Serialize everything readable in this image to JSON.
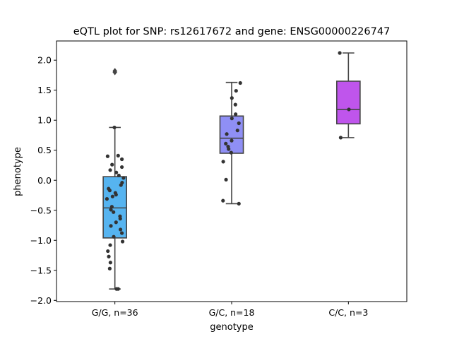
{
  "chart_data": {
    "type": "box",
    "title": "eQTL plot for SNP: rs12617672 and gene: ENSG00000226747",
    "xlabel": "genotype",
    "ylabel": "phenotype",
    "ylim": [
      -2.02,
      2.32
    ],
    "yticks": [
      2.0,
      1.5,
      1.0,
      0.5,
      0.0,
      -0.5,
      -1.0,
      -1.5,
      -2.0
    ],
    "ytick_labels": [
      "2.0",
      "1.5",
      "1.0",
      "0.5",
      "0.0",
      "−0.5",
      "−1.0",
      "−1.5",
      "−2.0"
    ],
    "grid": false,
    "groups": [
      {
        "label": "G/G, n=36",
        "color": "#56b4f0",
        "box": {
          "q1": -0.96,
          "median": -0.46,
          "q3": 0.06,
          "whisker_low": -1.81,
          "whisker_high": 0.88
        },
        "outliers": [
          1.8,
          1.82
        ],
        "points": [
          {
            "dx": -0.02,
            "y": 0.88
          },
          {
            "dx": 0.14,
            "y": 0.41
          },
          {
            "dx": -0.31,
            "y": 0.4
          },
          {
            "dx": 0.3,
            "y": 0.35
          },
          {
            "dx": -0.12,
            "y": 0.26
          },
          {
            "dx": 0.3,
            "y": 0.22
          },
          {
            "dx": -0.2,
            "y": 0.17
          },
          {
            "dx": 0.06,
            "y": 0.13
          },
          {
            "dx": 0.17,
            "y": 0.08
          },
          {
            "dx": 0.37,
            "y": 0.04
          },
          {
            "dx": 0.31,
            "y": -0.04
          },
          {
            "dx": 0.26,
            "y": -0.08
          },
          {
            "dx": -0.27,
            "y": -0.14
          },
          {
            "dx": -0.22,
            "y": -0.17
          },
          {
            "dx": 0.02,
            "y": -0.21
          },
          {
            "dx": 0.05,
            "y": -0.24
          },
          {
            "dx": -0.1,
            "y": -0.27
          },
          {
            "dx": -0.34,
            "y": -0.31
          },
          {
            "dx": -0.13,
            "y": -0.44
          },
          {
            "dx": -0.17,
            "y": -0.49
          },
          {
            "dx": -0.06,
            "y": -0.53
          },
          {
            "dx": 0.22,
            "y": -0.6
          },
          {
            "dx": 0.23,
            "y": -0.64
          },
          {
            "dx": 0.05,
            "y": -0.7
          },
          {
            "dx": -0.17,
            "y": -0.76
          },
          {
            "dx": 0.24,
            "y": -0.82
          },
          {
            "dx": 0.3,
            "y": -0.88
          },
          {
            "dx": -0.05,
            "y": -0.94
          },
          {
            "dx": 0.33,
            "y": -1.02
          },
          {
            "dx": -0.2,
            "y": -1.08
          },
          {
            "dx": -0.3,
            "y": -1.18
          },
          {
            "dx": -0.26,
            "y": -1.27
          },
          {
            "dx": -0.19,
            "y": -1.37
          },
          {
            "dx": -0.22,
            "y": -1.47
          },
          {
            "dx": 0.07,
            "y": -1.81
          },
          {
            "dx": 0.14,
            "y": -1.81
          }
        ]
      },
      {
        "label": "G/C, n=18",
        "color": "#8f8ff5",
        "box": {
          "q1": 0.45,
          "median": 0.7,
          "q3": 1.07,
          "whisker_low": -0.39,
          "whisker_high": 1.63
        },
        "outliers": [],
        "points": [
          {
            "dx": 0.37,
            "y": 1.62
          },
          {
            "dx": 0.19,
            "y": 1.49
          },
          {
            "dx": 0.01,
            "y": 1.37
          },
          {
            "dx": 0.16,
            "y": 1.26
          },
          {
            "dx": 0.17,
            "y": 1.1
          },
          {
            "dx": 0.01,
            "y": 1.03
          },
          {
            "dx": 0.31,
            "y": 0.95
          },
          {
            "dx": 0.25,
            "y": 0.83
          },
          {
            "dx": -0.21,
            "y": 0.77
          },
          {
            "dx": 0.0,
            "y": 0.66
          },
          {
            "dx": -0.25,
            "y": 0.61
          },
          {
            "dx": -0.15,
            "y": 0.56
          },
          {
            "dx": -0.13,
            "y": 0.52
          },
          {
            "dx": -0.02,
            "y": 0.46
          },
          {
            "dx": -0.36,
            "y": 0.31
          },
          {
            "dx": -0.24,
            "y": 0.01
          },
          {
            "dx": -0.37,
            "y": -0.34
          },
          {
            "dx": 0.31,
            "y": -0.39
          }
        ]
      },
      {
        "label": "C/C, n=3",
        "color": "#bf55ec",
        "box": {
          "q1": 0.94,
          "median": 1.18,
          "q3": 1.65,
          "whisker_low": 0.71,
          "whisker_high": 2.12
        },
        "outliers": [],
        "points": [
          {
            "dx": -0.37,
            "y": 2.12
          },
          {
            "dx": 0.02,
            "y": 1.18
          },
          {
            "dx": -0.33,
            "y": 0.71
          }
        ]
      }
    ]
  }
}
